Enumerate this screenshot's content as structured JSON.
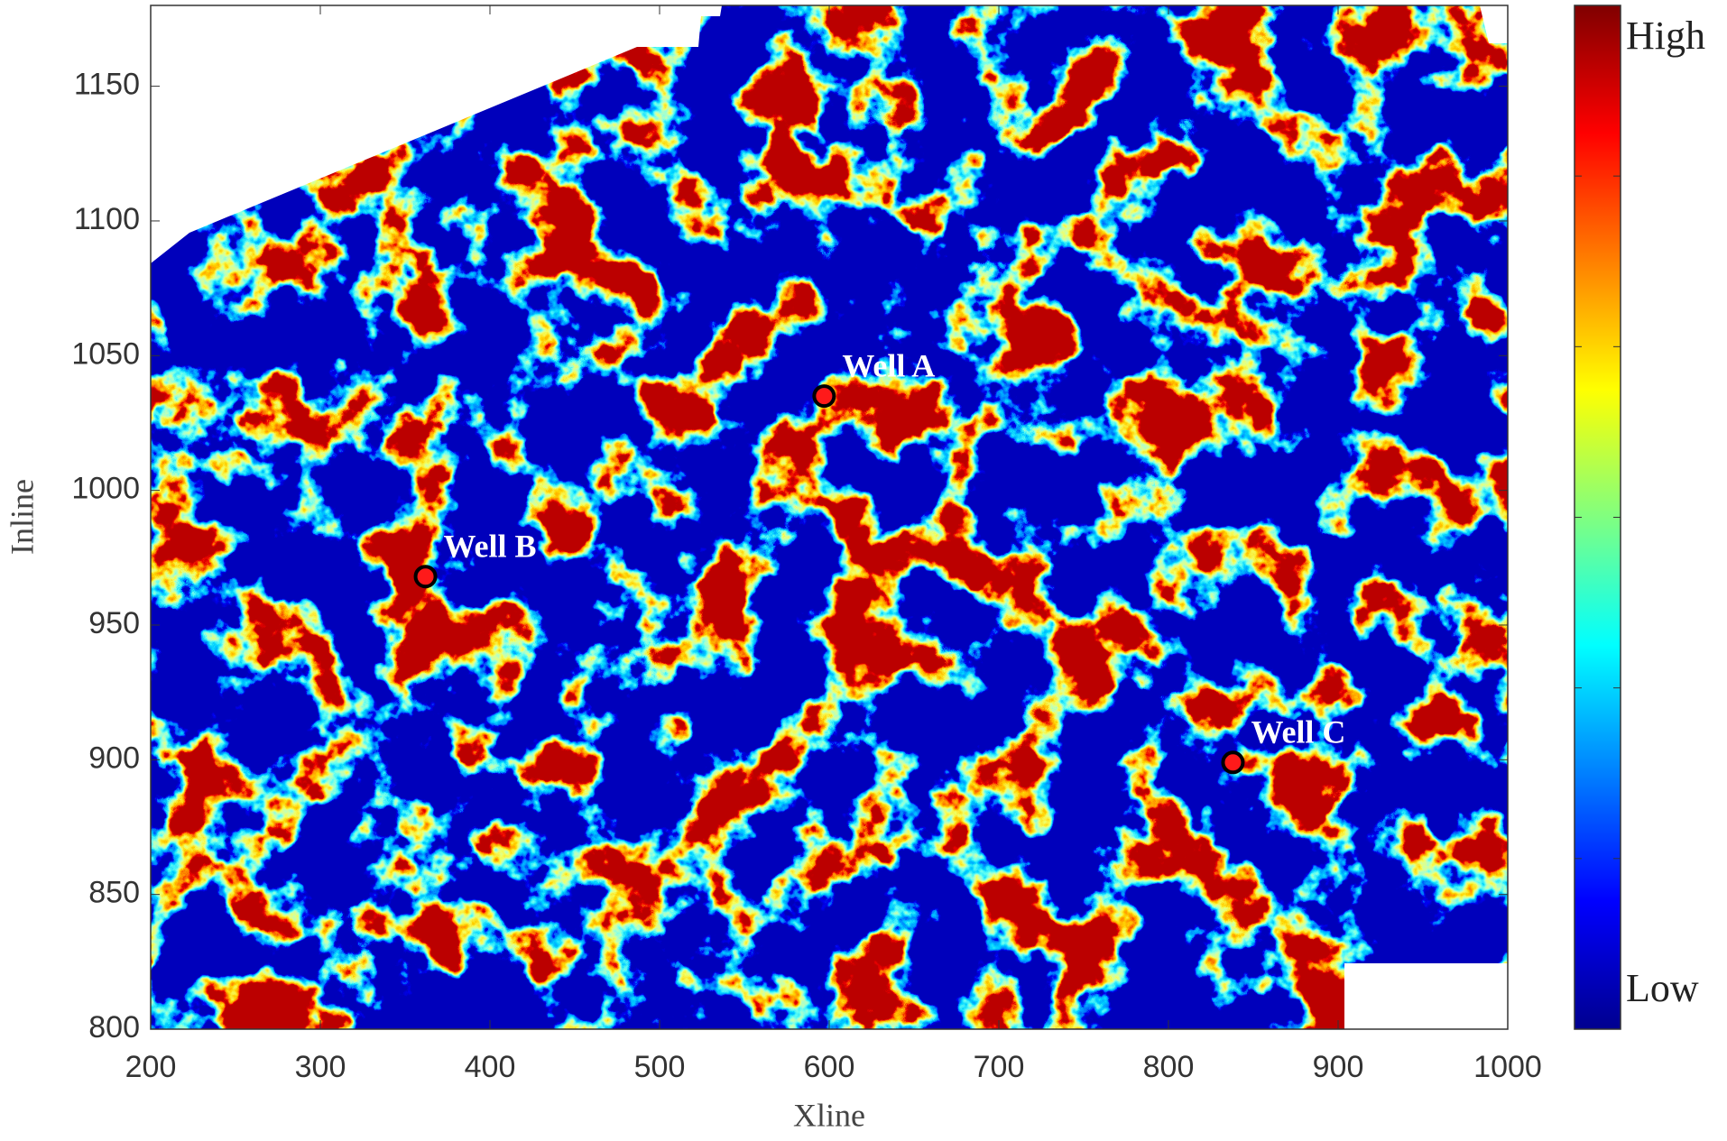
{
  "chart_data": {
    "type": "scatter",
    "x_label": "Xline",
    "y_label": "Inline",
    "xlim": [
      200,
      1000
    ],
    "xticks": [
      200,
      300,
      400,
      500,
      600,
      700,
      800,
      900,
      1000
    ],
    "ylim": [
      800,
      1180
    ],
    "yticks": [
      800,
      850,
      900,
      950,
      1000,
      1050,
      1100,
      1150
    ],
    "colormap": "jet",
    "colorbar_high": "High",
    "colorbar_low": "Low",
    "color": "#ff1a1a",
    "labels": [
      "Well A",
      "Well B",
      "Well C"
    ],
    "x": [
      597,
      362,
      838
    ],
    "y": [
      1035,
      968,
      899
    ]
  }
}
